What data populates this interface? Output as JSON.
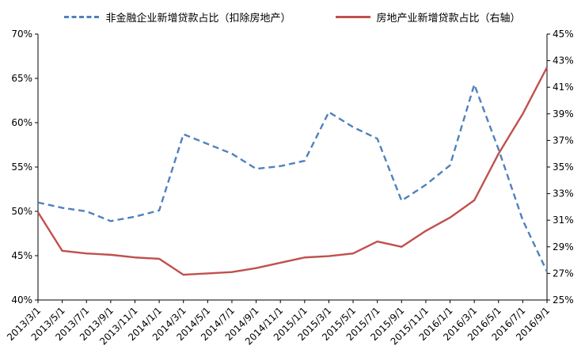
{
  "legend": {
    "series1_label": "非金融企业新增贷款占比（扣除房地产）",
    "series2_label": "房地产业新增贷款占比（右轴）"
  },
  "chart_data": {
    "type": "line",
    "title": "",
    "xlabel": "",
    "ylabel_left": "",
    "ylabel_right": "",
    "grid": false,
    "legend_position": "top",
    "categories": [
      "2013/3/1",
      "2013/5/1",
      "2013/7/1",
      "2013/9/1",
      "2013/11/1",
      "2014/1/1",
      "2014/3/1",
      "2014/5/1",
      "2014/7/1",
      "2014/9/1",
      "2014/11/1",
      "2015/1/1",
      "2015/3/1",
      "2015/5/1",
      "2015/7/1",
      "2015/9/1",
      "2015/11/1",
      "2016/1/1",
      "2016/3/1",
      "2016/5/1",
      "2016/7/1",
      "2016/9/1"
    ],
    "left_axis": {
      "min": 40,
      "max": 70,
      "step": 5,
      "unit": "%"
    },
    "right_axis": {
      "min": 25,
      "max": 45,
      "step": 2,
      "unit": "%"
    },
    "series": [
      {
        "name": "非金融企业新增贷款占比（扣除房地产）",
        "axis": "left",
        "color": "#4F81BD",
        "style": "dashed",
        "values": [
          51.0,
          50.4,
          50.0,
          48.9,
          49.4,
          50.1,
          58.7,
          57.6,
          56.5,
          54.8,
          55.1,
          55.7,
          61.2,
          59.5,
          58.2,
          51.2,
          53.0,
          55.2,
          64.3,
          57.0,
          49.0,
          43.2
        ]
      },
      {
        "name": "房地产业新增贷款占比（右轴）",
        "axis": "right",
        "color": "#C0504D",
        "style": "solid",
        "values": [
          31.6,
          28.7,
          28.5,
          28.4,
          28.2,
          28.1,
          26.9,
          27.0,
          27.1,
          27.4,
          27.8,
          28.2,
          28.3,
          28.5,
          29.4,
          29.0,
          30.2,
          31.2,
          32.5,
          36.0,
          39.0,
          42.5
        ]
      }
    ]
  }
}
